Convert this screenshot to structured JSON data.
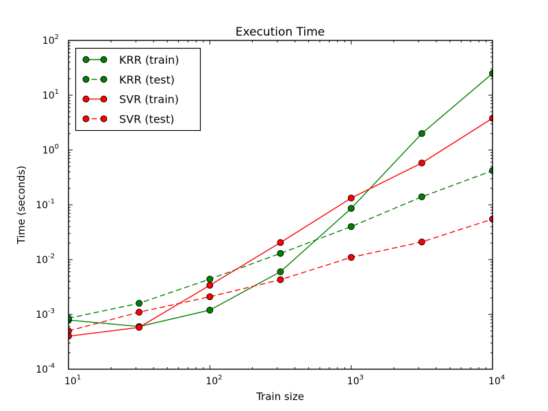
{
  "chart_data": {
    "type": "line",
    "title": "Execution Time",
    "xlabel": "Train size",
    "ylabel": "Time (seconds)",
    "xscale": "log",
    "yscale": "log",
    "xlim": [
      10,
      10000
    ],
    "ylim": [
      0.0001,
      100
    ],
    "x_tick_exponents": [
      1,
      2,
      3,
      4
    ],
    "y_tick_exponents": [
      -4,
      -3,
      -2,
      -1,
      0,
      1,
      2
    ],
    "grid": false,
    "x": [
      10,
      31.6,
      100,
      316,
      1000,
      3162,
      10000
    ],
    "series": [
      {
        "name": "KRR (train)",
        "color": "#008000",
        "style": "solid",
        "values": [
          0.00079,
          0.0006,
          0.0012,
          0.006,
          0.086,
          2.0,
          25.0
        ]
      },
      {
        "name": "KRR (test)",
        "color": "#008000",
        "style": "dashed",
        "values": [
          0.00085,
          0.0016,
          0.0044,
          0.013,
          0.04,
          0.14,
          0.42
        ]
      },
      {
        "name": "SVR (train)",
        "color": "#ff0000",
        "style": "solid",
        "values": [
          0.0004,
          0.00058,
          0.0034,
          0.0205,
          0.133,
          0.58,
          3.8
        ]
      },
      {
        "name": "SVR (test)",
        "color": "#ff0000",
        "style": "dashed",
        "values": [
          0.0005,
          0.0011,
          0.0021,
          0.0043,
          0.011,
          0.021,
          0.055
        ]
      }
    ],
    "legend": {
      "position": "upper left"
    },
    "marker": "circle",
    "marker_edge_color": "#000000",
    "axes_color": "#000000",
    "background_color": "#ffffff"
  }
}
